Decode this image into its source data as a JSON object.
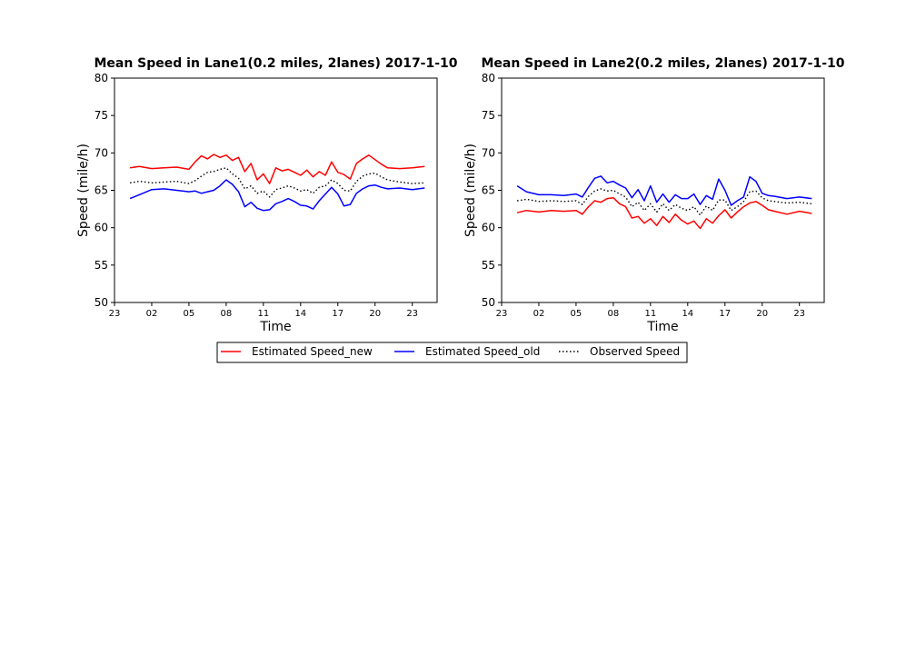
{
  "chart_data": [
    {
      "type": "line",
      "title": "Mean Speed in Lane1(0.2 miles, 2lanes) 2017-1-10",
      "xlabel": "Time",
      "ylabel": "Speed (mile/h)",
      "x_ticks": [
        "23",
        "02",
        "05",
        "08",
        "11",
        "14",
        "17",
        "20",
        "23"
      ],
      "x_range_hours": [
        -1,
        25
      ],
      "ylim": [
        50,
        80
      ],
      "y_ticks": [
        50,
        55,
        60,
        65,
        70,
        75,
        80
      ],
      "grid": false,
      "x_hours": [
        0.25,
        1,
        2,
        3,
        4,
        5,
        5.5,
        6,
        6.5,
        7,
        7.5,
        8,
        8.5,
        9,
        9.5,
        10,
        10.5,
        11,
        11.5,
        12,
        12.5,
        13,
        13.5,
        14,
        14.5,
        15,
        15.5,
        16,
        16.5,
        17,
        17.5,
        18,
        18.5,
        19,
        19.5,
        20,
        20.5,
        21,
        22,
        23,
        24
      ],
      "series": [
        {
          "name": "Estimated Speed_new",
          "color": "#ff0000",
          "style": "solid",
          "values": [
            68.0,
            68.2,
            67.9,
            68.0,
            68.1,
            67.8,
            68.8,
            69.6,
            69.2,
            69.8,
            69.4,
            69.7,
            69.0,
            69.4,
            67.5,
            68.6,
            66.4,
            67.2,
            65.9,
            68.0,
            67.6,
            67.8,
            67.4,
            67.0,
            67.7,
            66.8,
            67.5,
            67.0,
            68.8,
            67.4,
            67.1,
            66.5,
            68.6,
            69.2,
            69.7,
            69.1,
            68.5,
            68.0,
            67.9,
            68.0,
            68.2
          ]
        },
        {
          "name": "Estimated Speed_old",
          "color": "#0000ff",
          "style": "solid",
          "values": [
            63.9,
            64.4,
            65.1,
            65.2,
            65.0,
            64.8,
            64.9,
            64.6,
            64.8,
            65.0,
            65.6,
            66.4,
            65.8,
            64.8,
            62.8,
            63.4,
            62.6,
            62.3,
            62.4,
            63.2,
            63.5,
            63.9,
            63.5,
            63.0,
            62.9,
            62.5,
            63.6,
            64.5,
            65.4,
            64.5,
            62.9,
            63.1,
            64.6,
            65.2,
            65.6,
            65.7,
            65.4,
            65.2,
            65.3,
            65.1,
            65.3
          ]
        },
        {
          "name": "Observed Speed",
          "color": "#000000",
          "style": "dotted",
          "values": [
            66.0,
            66.2,
            66.0,
            66.1,
            66.2,
            65.9,
            66.3,
            66.9,
            67.4,
            67.5,
            67.8,
            68.0,
            67.2,
            66.6,
            65.2,
            65.6,
            64.6,
            64.9,
            64.1,
            65.1,
            65.3,
            65.6,
            65.3,
            64.9,
            65.1,
            64.6,
            65.4,
            65.6,
            66.4,
            65.9,
            65.0,
            64.9,
            66.2,
            66.9,
            67.2,
            67.3,
            66.8,
            66.4,
            66.1,
            65.9,
            66.0
          ]
        }
      ]
    },
    {
      "type": "line",
      "title": "Mean Speed in Lane2(0.2 miles, 2lanes) 2017-1-10",
      "xlabel": "Time",
      "ylabel": "Speed (mile/h)",
      "x_ticks": [
        "23",
        "02",
        "05",
        "08",
        "11",
        "14",
        "17",
        "20",
        "23"
      ],
      "x_range_hours": [
        -1,
        25
      ],
      "ylim": [
        50,
        80
      ],
      "y_ticks": [
        50,
        55,
        60,
        65,
        70,
        75,
        80
      ],
      "grid": false,
      "x_hours": [
        0.25,
        1,
        2,
        3,
        4,
        5,
        5.5,
        6,
        6.5,
        7,
        7.5,
        8,
        8.5,
        9,
        9.5,
        10,
        10.5,
        11,
        11.5,
        12,
        12.5,
        13,
        13.5,
        14,
        14.5,
        15,
        15.5,
        16,
        16.5,
        17,
        17.5,
        18,
        18.5,
        19,
        19.5,
        20,
        20.5,
        21,
        22,
        23,
        24
      ],
      "series": [
        {
          "name": "Estimated Speed_new",
          "color": "#ff0000",
          "style": "solid",
          "values": [
            62.0,
            62.3,
            62.1,
            62.3,
            62.2,
            62.3,
            61.8,
            62.8,
            63.6,
            63.4,
            63.9,
            64.0,
            63.2,
            62.8,
            61.3,
            61.5,
            60.6,
            61.2,
            60.3,
            61.5,
            60.7,
            61.8,
            61.0,
            60.5,
            60.9,
            59.9,
            61.2,
            60.6,
            61.6,
            62.4,
            61.3,
            62.1,
            62.8,
            63.3,
            63.5,
            63.0,
            62.4,
            62.2,
            61.8,
            62.2,
            61.9
          ]
        },
        {
          "name": "Estimated Speed_old",
          "color": "#0000ff",
          "style": "solid",
          "values": [
            65.6,
            64.8,
            64.4,
            64.4,
            64.3,
            64.5,
            64.1,
            65.4,
            66.6,
            66.9,
            66.0,
            66.2,
            65.7,
            65.3,
            64.0,
            65.1,
            63.6,
            65.6,
            63.4,
            64.5,
            63.4,
            64.4,
            63.9,
            63.9,
            64.5,
            63.1,
            64.3,
            63.8,
            66.5,
            65.0,
            63.0,
            63.6,
            64.1,
            66.8,
            66.2,
            64.6,
            64.3,
            64.2,
            63.9,
            64.1,
            63.9
          ]
        },
        {
          "name": "Observed Speed",
          "color": "#000000",
          "style": "dotted",
          "values": [
            63.6,
            63.8,
            63.5,
            63.6,
            63.5,
            63.6,
            63.1,
            64.2,
            64.9,
            65.2,
            64.9,
            65.0,
            64.5,
            64.1,
            62.8,
            63.4,
            62.3,
            63.2,
            62.1,
            63.2,
            62.3,
            63.1,
            62.6,
            62.3,
            62.8,
            61.7,
            62.9,
            62.3,
            63.7,
            63.7,
            62.3,
            62.8,
            63.5,
            64.8,
            64.9,
            64.0,
            63.6,
            63.5,
            63.3,
            63.4,
            63.2
          ]
        }
      ]
    }
  ],
  "legend": {
    "placement": "bottom-center",
    "items": [
      {
        "label": "Estimated Speed_new",
        "color": "#ff0000",
        "style": "solid"
      },
      {
        "label": "Estimated Speed_old",
        "color": "#0000ff",
        "style": "solid"
      },
      {
        "label": "Observed Speed",
        "color": "#000000",
        "style": "dotted"
      }
    ]
  }
}
